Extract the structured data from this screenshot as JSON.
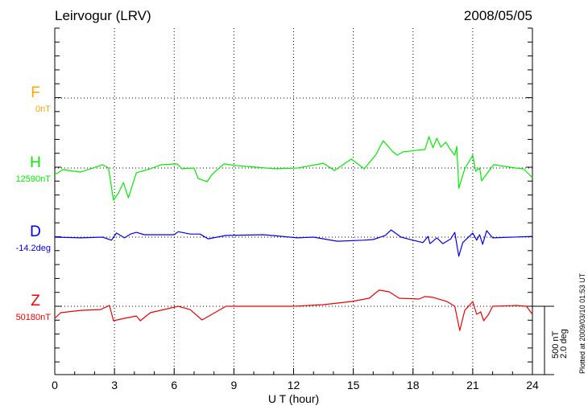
{
  "chart_data": {
    "type": "line",
    "title": "Leirvogur (LRV)",
    "date": "2008/05/05",
    "xlabel": "U T (hour)",
    "xlim": [
      0,
      24
    ],
    "xticks": [
      "0",
      "3",
      "6",
      "9",
      "12",
      "15",
      "18",
      "21",
      "24"
    ],
    "grid": true,
    "scale_label_nt": "500 nT",
    "scale_label_deg": "2.0 deg",
    "plotted_note": "Plotted at 2009/03/10 01:53 UT",
    "series": [
      {
        "name": "F",
        "baseline_label": "0nT",
        "color": "#ffa500",
        "unit": "nT",
        "points": []
      },
      {
        "name": "H",
        "baseline_label": "12590nT",
        "color": "#00ee00",
        "unit": "nT",
        "points": [
          [
            0,
            -41
          ],
          [
            0.1,
            -41
          ],
          [
            0.4,
            -12
          ],
          [
            1.3,
            -30
          ],
          [
            2.4,
            24
          ],
          [
            2.7,
            0
          ],
          [
            2.95,
            -236
          ],
          [
            3.2,
            -183
          ],
          [
            3.45,
            -106
          ],
          [
            3.7,
            -218
          ],
          [
            4.1,
            -35
          ],
          [
            4.8,
            -6
          ],
          [
            5.35,
            24
          ],
          [
            6.15,
            30
          ],
          [
            6.4,
            -6
          ],
          [
            7.0,
            0
          ],
          [
            7.2,
            -77
          ],
          [
            7.65,
            -100
          ],
          [
            7.9,
            -47
          ],
          [
            8.5,
            30
          ],
          [
            9.1,
            18
          ],
          [
            11.1,
            -6
          ],
          [
            12.2,
            0
          ],
          [
            13.5,
            35
          ],
          [
            14.05,
            -18
          ],
          [
            14.9,
            65
          ],
          [
            15.55,
            -6
          ],
          [
            16.15,
            100
          ],
          [
            16.5,
            200
          ],
          [
            16.95,
            124
          ],
          [
            17.2,
            94
          ],
          [
            17.5,
            118
          ],
          [
            18.6,
            136
          ],
          [
            18.8,
            230
          ],
          [
            19.0,
            148
          ],
          [
            19.2,
            218
          ],
          [
            19.4,
            153
          ],
          [
            19.65,
            189
          ],
          [
            19.9,
            130
          ],
          [
            20.1,
            94
          ],
          [
            20.2,
            159
          ],
          [
            20.3,
            -148
          ],
          [
            20.6,
            -6
          ],
          [
            21.0,
            94
          ],
          [
            21.15,
            -24
          ],
          [
            21.35,
            0
          ],
          [
            21.45,
            -94
          ],
          [
            21.8,
            -24
          ],
          [
            22.05,
            24
          ],
          [
            23.15,
            0
          ],
          [
            23.55,
            -6
          ],
          [
            24,
            -71
          ]
        ]
      },
      {
        "name": "D",
        "baseline_label": "-14.2deg",
        "color": "#0000ee",
        "unit": "deg",
        "points": [
          [
            0,
            0
          ],
          [
            1.3,
            -0.02
          ],
          [
            2.4,
            0
          ],
          [
            2.85,
            -0.09
          ],
          [
            3.1,
            0.12
          ],
          [
            3.5,
            -0.02
          ],
          [
            3.8,
            0.09
          ],
          [
            4.1,
            0.14
          ],
          [
            4.5,
            0.07
          ],
          [
            6.0,
            0.07
          ],
          [
            6.2,
            0.16
          ],
          [
            6.8,
            0.09
          ],
          [
            7.3,
            0.09
          ],
          [
            7.7,
            -0.05
          ],
          [
            8.6,
            0.05
          ],
          [
            10.5,
            0.07
          ],
          [
            12.2,
            -0.02
          ],
          [
            13,
            0
          ],
          [
            14.2,
            -0.12
          ],
          [
            15.5,
            -0.09
          ],
          [
            16.0,
            -0.07
          ],
          [
            16.6,
            0.05
          ],
          [
            16.9,
            0.21
          ],
          [
            17.4,
            0
          ],
          [
            18.0,
            -0.09
          ],
          [
            18.5,
            -0.16
          ],
          [
            18.75,
            0.02
          ],
          [
            18.85,
            -0.19
          ],
          [
            19.2,
            -0.02
          ],
          [
            19.5,
            -0.19
          ],
          [
            19.9,
            -0.05
          ],
          [
            20.1,
            0.14
          ],
          [
            20.3,
            -0.56
          ],
          [
            20.5,
            -0.16
          ],
          [
            21.0,
            0.12
          ],
          [
            21.2,
            -0.09
          ],
          [
            21.35,
            0.07
          ],
          [
            21.5,
            -0.21
          ],
          [
            21.7,
            0.19
          ],
          [
            22.0,
            -0.02
          ],
          [
            24,
            0.02
          ]
        ]
      },
      {
        "name": "Z",
        "baseline_label": "50180nT",
        "color": "#ee0000",
        "unit": "nT",
        "points": [
          [
            0,
            -88
          ],
          [
            0.3,
            -47
          ],
          [
            1.3,
            -30
          ],
          [
            2.3,
            -24
          ],
          [
            2.75,
            6
          ],
          [
            2.95,
            -106
          ],
          [
            3.5,
            -88
          ],
          [
            4.1,
            -71
          ],
          [
            4.3,
            -106
          ],
          [
            4.8,
            -47
          ],
          [
            6.2,
            0
          ],
          [
            6.8,
            -24
          ],
          [
            7.4,
            -100
          ],
          [
            7.9,
            -59
          ],
          [
            8.6,
            0
          ],
          [
            12,
            0
          ],
          [
            13.5,
            12
          ],
          [
            14.9,
            35
          ],
          [
            15.8,
            59
          ],
          [
            16.3,
            118
          ],
          [
            16.8,
            106
          ],
          [
            17.3,
            59
          ],
          [
            18.3,
            53
          ],
          [
            18.6,
            71
          ],
          [
            19.0,
            65
          ],
          [
            19.7,
            35
          ],
          [
            20.1,
            0
          ],
          [
            20.35,
            -177
          ],
          [
            20.6,
            -30
          ],
          [
            21.0,
            35
          ],
          [
            21.2,
            -59
          ],
          [
            21.4,
            -41
          ],
          [
            21.55,
            -106
          ],
          [
            21.8,
            -59
          ],
          [
            22.0,
            0
          ],
          [
            23.2,
            6
          ],
          [
            23.7,
            0
          ],
          [
            24,
            -59
          ]
        ]
      }
    ]
  }
}
